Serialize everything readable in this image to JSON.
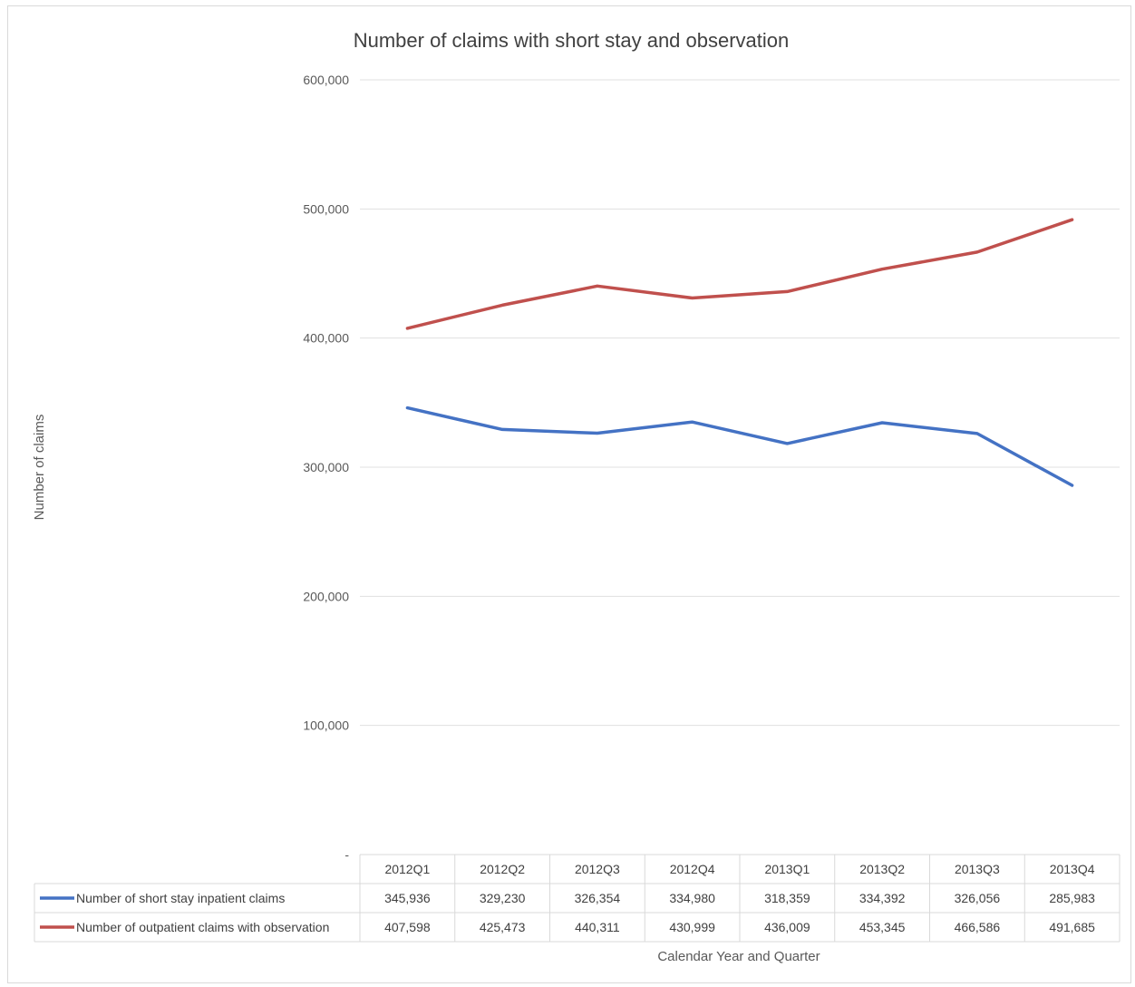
{
  "chart_data": {
    "type": "line",
    "title": "Number of claims with short stay and observation",
    "xlabel": "Calendar Year and Quarter",
    "ylabel": "Number of claims",
    "ylim": [
      0,
      600000
    ],
    "yticks": [
      "-",
      "100,000",
      "200,000",
      "300,000",
      "400,000",
      "500,000",
      "600,000"
    ],
    "grid": true,
    "legend": "data table",
    "categories": [
      "2012Q1",
      "2012Q2",
      "2012Q3",
      "2012Q4",
      "2013Q1",
      "2013Q2",
      "2013Q3",
      "2013Q4"
    ],
    "series": [
      {
        "name": "Number of short stay inpatient claims",
        "color": "#4472c4",
        "values": [
          345936,
          329230,
          326354,
          334980,
          318359,
          334392,
          326056,
          285983
        ],
        "labels": [
          "345,936",
          "329,230",
          "326,354",
          "334,980",
          "318,359",
          "334,392",
          "326,056",
          "285,983"
        ]
      },
      {
        "name": "Number of outpatient claims with observation",
        "color": "#c0504d",
        "values": [
          407598,
          425473,
          440311,
          430999,
          436009,
          453345,
          466586,
          491685
        ],
        "labels": [
          "407,598",
          "425,473",
          "440,311",
          "430,999",
          "436,009",
          "453,345",
          "466,586",
          "491,685"
        ]
      }
    ]
  }
}
